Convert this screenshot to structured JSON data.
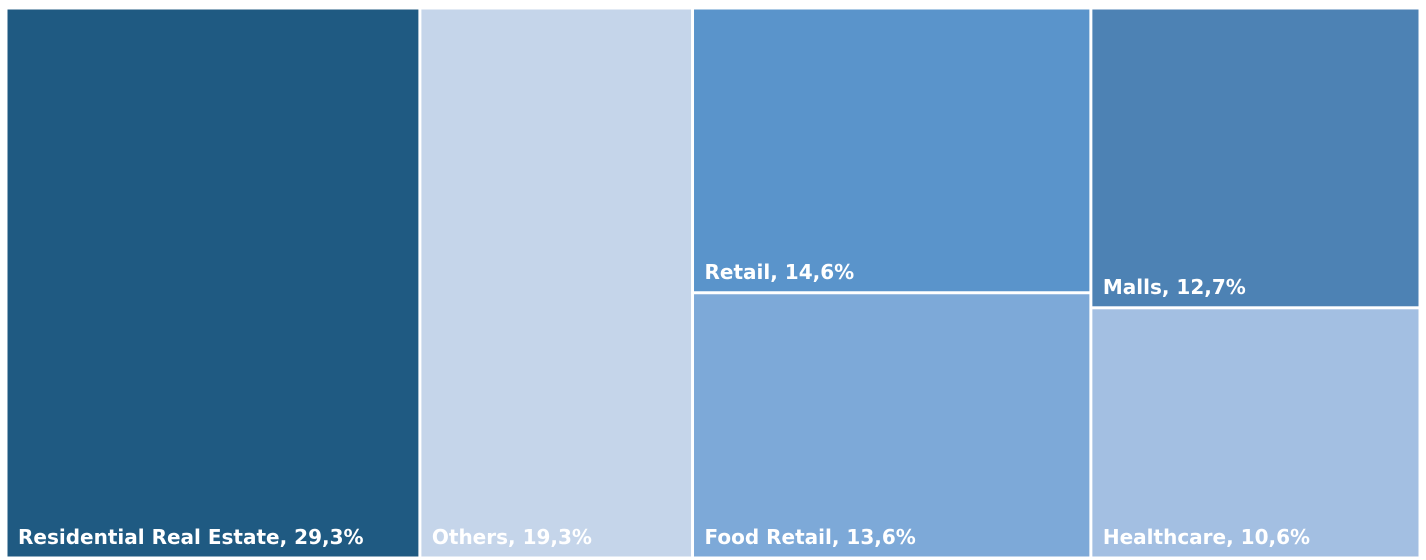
{
  "chart_data": {
    "type": "treemap",
    "value_labels": [
      "Residential Real Estate, 29,3%",
      "Others, 19,3%",
      "Retail, 14,6%",
      "Food Retail, 13,6%",
      "Malls, 12,7%",
      "Healthcare, 10,6%"
    ],
    "values": [
      29.3,
      19.3,
      14.6,
      13.6,
      12.7,
      10.6
    ],
    "colors": [
      "#1f5a82",
      "#c5d5ea",
      "#5a94cb",
      "#7da9d8",
      "#4d82b4",
      "#a3bfe2"
    ]
  }
}
